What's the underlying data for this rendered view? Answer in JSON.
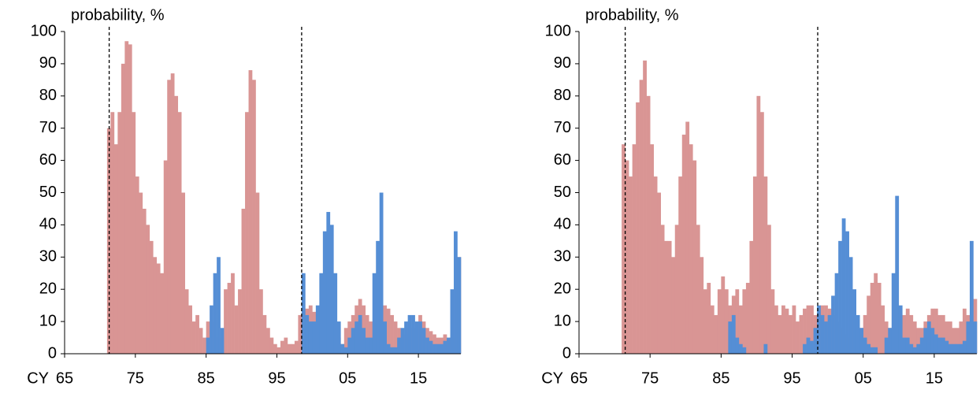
{
  "chart_data": [
    {
      "type": "bar",
      "y_label": "probability, %",
      "x_label": "CY",
      "x": [
        1971,
        1971.5,
        1972,
        1972.5,
        1973,
        1973.5,
        1974,
        1974.5,
        1975,
        1975.5,
        1976,
        1976.5,
        1977,
        1977.5,
        1978,
        1978.5,
        1979,
        1979.5,
        1980,
        1980.5,
        1981,
        1981.5,
        1982,
        1982.5,
        1983,
        1983.5,
        1984,
        1984.5,
        1985,
        1985.5,
        1986,
        1986.5,
        1987,
        1987.5,
        1988,
        1988.5,
        1989,
        1989.5,
        1990,
        1990.5,
        1991,
        1991.5,
        1992,
        1992.5,
        1993,
        1993.5,
        1994,
        1994.5,
        1995,
        1995.5,
        1996,
        1996.5,
        1997,
        1997.5,
        1998,
        1998.5,
        1999,
        1999.5,
        2000,
        2000.5,
        2001,
        2001.5,
        2002,
        2002.5,
        2003,
        2003.5,
        2004,
        2004.5,
        2005,
        2005.5,
        2006,
        2006.5,
        2007,
        2007.5,
        2008,
        2008.5,
        2009,
        2009.5,
        2010,
        2010.5,
        2011,
        2011.5,
        2012,
        2012.5,
        2013,
        2013.5,
        2014,
        2014.5,
        2015,
        2015.5,
        2016,
        2016.5,
        2017,
        2017.5,
        2018,
        2018.5,
        2019,
        2019.5,
        2020,
        2020.5
      ],
      "bar_width": 0.5,
      "series": [
        {
          "color": "#d99594",
          "values": [
            70,
            75,
            65,
            75,
            90,
            97,
            96,
            75,
            55,
            50,
            45,
            40,
            35,
            30,
            28,
            25,
            60,
            85,
            87,
            80,
            75,
            50,
            20,
            15,
            10,
            12,
            8,
            5,
            10,
            10,
            5,
            2,
            5,
            20,
            22,
            25,
            15,
            20,
            45,
            75,
            88,
            85,
            50,
            20,
            12,
            8,
            5,
            3,
            2,
            4,
            5,
            3,
            3,
            4,
            12,
            12,
            14,
            15,
            13,
            12,
            10,
            8,
            5,
            5,
            5,
            5,
            3,
            8,
            10,
            12,
            15,
            17,
            15,
            12,
            10,
            8,
            5,
            5,
            15,
            14,
            12,
            10,
            8,
            6,
            6,
            8,
            7,
            8,
            12,
            10,
            8,
            7,
            6,
            5,
            5,
            6,
            5,
            5,
            5,
            30
          ]
        },
        {
          "color": "#558ed5",
          "values": [
            0,
            0,
            0,
            0,
            0,
            0,
            0,
            0,
            0,
            0,
            0,
            0,
            0,
            0,
            0,
            0,
            0,
            0,
            0,
            0,
            0,
            0,
            0,
            0,
            0,
            0,
            0,
            0,
            5,
            15,
            25,
            30,
            8,
            0,
            0,
            0,
            0,
            0,
            0,
            0,
            0,
            0,
            0,
            0,
            0,
            0,
            0,
            0,
            0,
            0,
            0,
            0,
            0,
            0,
            0,
            25,
            12,
            10,
            10,
            15,
            25,
            38,
            44,
            40,
            25,
            10,
            3,
            2,
            5,
            8,
            10,
            12,
            8,
            5,
            5,
            25,
            35,
            50,
            10,
            3,
            2,
            2,
            5,
            8,
            10,
            12,
            12,
            10,
            10,
            8,
            5,
            4,
            3,
            3,
            3,
            4,
            5,
            20,
            38,
            30
          ]
        }
      ],
      "vlines": [
        1971.3,
        1998.5
      ],
      "xlim": [
        1965,
        2021
      ],
      "xticks": [
        {
          "value": 1965,
          "label": "65"
        },
        {
          "value": 1975,
          "label": "75"
        },
        {
          "value": 1985,
          "label": "85"
        },
        {
          "value": 1995,
          "label": "95"
        },
        {
          "value": 2005,
          "label": "05"
        },
        {
          "value": 2015,
          "label": "15"
        }
      ],
      "ylim": [
        0,
        100
      ],
      "yticks": [
        0,
        10,
        20,
        30,
        40,
        50,
        60,
        70,
        80,
        90,
        100
      ],
      "grid": false
    },
    {
      "type": "bar",
      "y_label": "probability, %",
      "x_label": "CY",
      "x": [
        1971,
        1971.5,
        1972,
        1972.5,
        1973,
        1973.5,
        1974,
        1974.5,
        1975,
        1975.5,
        1976,
        1976.5,
        1977,
        1977.5,
        1978,
        1978.5,
        1979,
        1979.5,
        1980,
        1980.5,
        1981,
        1981.5,
        1982,
        1982.5,
        1983,
        1983.5,
        1984,
        1984.5,
        1985,
        1985.5,
        1986,
        1986.5,
        1987,
        1987.5,
        1988,
        1988.5,
        1989,
        1989.5,
        1990,
        1990.5,
        1991,
        1991.5,
        1992,
        1992.5,
        1993,
        1993.5,
        1994,
        1994.5,
        1995,
        1995.5,
        1996,
        1996.5,
        1997,
        1997.5,
        1998,
        1998.5,
        1999,
        1999.5,
        2000,
        2000.5,
        2001,
        2001.5,
        2002,
        2002.5,
        2003,
        2003.5,
        2004,
        2004.5,
        2005,
        2005.5,
        2006,
        2006.5,
        2007,
        2007.5,
        2008,
        2008.5,
        2009,
        2009.5,
        2010,
        2010.5,
        2011,
        2011.5,
        2012,
        2012.5,
        2013,
        2013.5,
        2014,
        2014.5,
        2015,
        2015.5,
        2016,
        2016.5,
        2017,
        2017.5,
        2018,
        2018.5,
        2019,
        2019.5,
        2020,
        2020.5
      ],
      "bar_width": 0.5,
      "series": [
        {
          "color": "#d99594",
          "values": [
            65,
            60,
            55,
            65,
            78,
            85,
            91,
            80,
            65,
            55,
            50,
            40,
            35,
            35,
            30,
            40,
            55,
            68,
            72,
            65,
            60,
            40,
            30,
            20,
            22,
            15,
            12,
            20,
            24,
            20,
            15,
            18,
            20,
            15,
            20,
            22,
            35,
            55,
            80,
            75,
            55,
            40,
            20,
            15,
            12,
            15,
            14,
            12,
            15,
            10,
            12,
            14,
            15,
            15,
            12,
            10,
            15,
            15,
            14,
            12,
            10,
            8,
            6,
            5,
            5,
            5,
            5,
            8,
            12,
            18,
            22,
            25,
            22,
            15,
            10,
            8,
            5,
            5,
            12,
            12,
            14,
            12,
            10,
            8,
            8,
            10,
            12,
            14,
            14,
            12,
            12,
            10,
            10,
            8,
            8,
            10,
            14,
            12,
            12,
            17
          ]
        },
        {
          "color": "#558ed5",
          "values": [
            0,
            0,
            0,
            0,
            0,
            0,
            0,
            0,
            0,
            0,
            0,
            0,
            0,
            0,
            0,
            0,
            0,
            0,
            0,
            0,
            0,
            0,
            0,
            0,
            0,
            0,
            0,
            0,
            0,
            0,
            10,
            12,
            5,
            3,
            2,
            0,
            0,
            0,
            0,
            0,
            3,
            0,
            0,
            0,
            0,
            0,
            0,
            0,
            0,
            0,
            0,
            3,
            5,
            4,
            8,
            15,
            12,
            10,
            12,
            18,
            25,
            35,
            42,
            38,
            30,
            20,
            12,
            8,
            5,
            3,
            2,
            2,
            0,
            0,
            5,
            8,
            25,
            49,
            15,
            5,
            5,
            3,
            2,
            3,
            5,
            8,
            10,
            8,
            6,
            5,
            5,
            4,
            3,
            3,
            3,
            3,
            4,
            10,
            35,
            10
          ]
        }
      ],
      "vlines": [
        1971.5,
        1998.6
      ],
      "xlim": [
        1965,
        2021
      ],
      "xticks": [
        {
          "value": 1965,
          "label": "65"
        },
        {
          "value": 1975,
          "label": "75"
        },
        {
          "value": 1985,
          "label": "85"
        },
        {
          "value": 1995,
          "label": "95"
        },
        {
          "value": 2005,
          "label": "05"
        },
        {
          "value": 2015,
          "label": "15"
        }
      ],
      "ylim": [
        0,
        100
      ],
      "yticks": [
        0,
        10,
        20,
        30,
        40,
        50,
        60,
        70,
        80,
        90,
        100
      ],
      "grid": false
    }
  ]
}
